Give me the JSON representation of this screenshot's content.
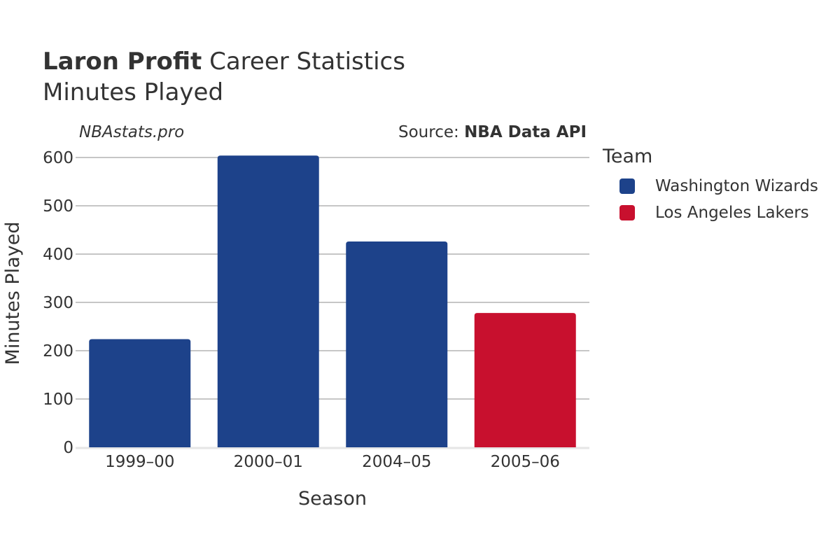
{
  "header": {
    "player_name": "Laron Profit",
    "title_rest": "Career Statistics",
    "subtitle": "Minutes Played",
    "watermark": "NBAstats.pro",
    "source_label": "Source: ",
    "source_name": "NBA Data API"
  },
  "legend": {
    "title": "Team",
    "items": [
      {
        "label": "Washington Wizards",
        "color": "#1d428a"
      },
      {
        "label": "Los Angeles Lakers",
        "color": "#c8102e"
      }
    ]
  },
  "chart_data": {
    "type": "bar",
    "xlabel": "Season",
    "ylabel": "Minutes Played",
    "ylim": [
      0,
      600
    ],
    "yticks": [
      0,
      100,
      200,
      300,
      400,
      500,
      600
    ],
    "categories": [
      "1999–00",
      "2000–01",
      "2004–05",
      "2005–06"
    ],
    "values": [
      224,
      604,
      426,
      278
    ],
    "teams": [
      "Washington Wizards",
      "Washington Wizards",
      "Washington Wizards",
      "Los Angeles Lakers"
    ],
    "colors": [
      "#1d428a",
      "#1d428a",
      "#1d428a",
      "#c8102e"
    ],
    "grid": true,
    "legend_position": "right"
  }
}
